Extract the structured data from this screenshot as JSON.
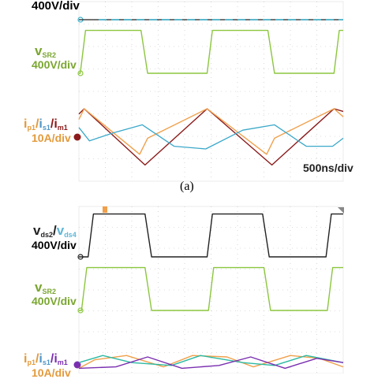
{
  "colors": {
    "vds": "#222222",
    "vds_cyan": "#39b3cf",
    "vsr": "#8cc63f",
    "ip": "#f0a04b",
    "is": "#3aa8c9",
    "im": "#8b1a1a",
    "ip_b": "#f0a04b",
    "is_b": "#2bb9a2",
    "im_b": "#7a2fb0",
    "grid": "#bdbdbd",
    "label_green": "#7aa630",
    "label_orange": "#e39a3b",
    "label_dark": "#222222",
    "label_blue": "#4f96c8"
  },
  "panel_a": {
    "top_scale": "400V/div",
    "vsr_label": {
      "main": "v",
      "sub": "SR2"
    },
    "vsr_scale": "400V/div",
    "current_label": {
      "p1": "i",
      "p1_sub": "p1",
      "sep1": "/",
      "s1": "i",
      "s1_sub": "s1",
      "sep2": "/",
      "m1": "i",
      "m1_sub": "m1"
    },
    "current_scale": "10A/div",
    "timebase": "500ns/div",
    "caption": "(a)"
  },
  "panel_b": {
    "vds_label": {
      "main": "v",
      "sub": "ds2",
      "sep": "/",
      "main2": "v",
      "sub2": "ds4"
    },
    "vds_scale": "400V/div",
    "vsr_label": {
      "main": "v",
      "sub": "SR2"
    },
    "vsr_scale": "400V/div",
    "current_label": {
      "p1": "i",
      "p1_sub": "p1",
      "sep1": "/",
      "s1": "i",
      "s1_sub": "s1",
      "sep2": "/",
      "m1": "i",
      "m1_sub": "m1"
    },
    "current_scale": "10A/div"
  },
  "chart_data": [
    {
      "type": "line",
      "panel": "a",
      "x_unit": "div",
      "time_per_div": "500ns",
      "xlim": [
        0,
        10
      ],
      "series": [
        {
          "key": "vds_top",
          "color_key": "vds",
          "x": [
            0,
            3.4,
            3.5,
            7.3,
            7.4,
            10
          ],
          "values": [
            0,
            0,
            0,
            0,
            0,
            0
          ]
        },
        {
          "key": "vsr2",
          "color_key": "vsr",
          "x": [
            0,
            0.05,
            0.25,
            2.35,
            2.6,
            4.85,
            5.05,
            7.15,
            7.4,
            9.65,
            9.85,
            10
          ],
          "values": [
            0,
            0,
            1.6,
            1.6,
            0,
            0,
            1.6,
            1.6,
            0,
            0,
            1.6,
            1.6
          ]
        },
        {
          "key": "im1",
          "color_key": "im",
          "x": [
            0,
            0.2,
            2.5,
            4.85,
            7.3,
            9.65,
            10
          ],
          "values": [
            0.8,
            1.0,
            -1.1,
            1.0,
            -1.1,
            1.0,
            0.9
          ]
        },
        {
          "key": "ip1",
          "color_key": "ip",
          "x": [
            0,
            0.2,
            2.3,
            2.6,
            4.85,
            7.1,
            7.4,
            9.65,
            10
          ],
          "values": [
            0.6,
            1.0,
            -0.7,
            -0.1,
            1.0,
            -0.7,
            -0.1,
            1.0,
            0.7
          ]
        },
        {
          "key": "is1",
          "color_key": "is",
          "x": [
            0,
            0.4,
            1.3,
            2.4,
            3.6,
            4.8,
            6.2,
            7.4,
            8.6,
            9.6,
            10
          ],
          "values": [
            0.3,
            -0.2,
            0.1,
            0.4,
            -0.4,
            -0.5,
            0.2,
            0.4,
            -0.4,
            -0.4,
            -0.1
          ]
        }
      ]
    },
    {
      "type": "line",
      "panel": "b",
      "x_unit": "div",
      "time_per_div": "500ns",
      "xlim": [
        0,
        10
      ],
      "series": [
        {
          "key": "vds2",
          "color_key": "vds",
          "x": [
            0,
            0.35,
            0.55,
            2.5,
            2.75,
            4.85,
            5.05,
            6.95,
            7.2,
            9.35,
            9.55,
            10
          ],
          "values": [
            0,
            0,
            1.6,
            1.6,
            0,
            0,
            1.6,
            1.6,
            0,
            0,
            1.6,
            1.6
          ]
        },
        {
          "key": "vsr2",
          "color_key": "vsr",
          "x": [
            0,
            0.1,
            0.3,
            2.5,
            2.75,
            4.9,
            5.1,
            7.0,
            7.25,
            9.4,
            9.6,
            10
          ],
          "values": [
            0,
            0,
            1.6,
            1.6,
            0,
            0,
            1.6,
            1.6,
            0,
            0,
            1.6,
            1.6
          ]
        },
        {
          "key": "ip1_b",
          "color_key": "ip_b",
          "x": [
            0,
            0.6,
            1.8,
            3.2,
            4.3,
            5.6,
            6.6,
            8.0,
            9.1,
            10
          ],
          "values": [
            -0.3,
            0.3,
            0.6,
            -0.2,
            0.6,
            0.5,
            -0.2,
            0.6,
            0.4,
            -0.2
          ]
        },
        {
          "key": "is1_b",
          "color_key": "is_b",
          "x": [
            0,
            0.9,
            2.0,
            3.5,
            4.6,
            6.2,
            7.4,
            8.6,
            10
          ],
          "values": [
            0.1,
            0.6,
            0.1,
            -0.1,
            0.6,
            0.1,
            -0.1,
            0.6,
            0.1
          ]
        },
        {
          "key": "im1_b",
          "color_key": "im_b",
          "x": [
            0,
            1.4,
            2.6,
            3.9,
            5.3,
            6.5,
            7.8,
            9.0,
            10
          ],
          "values": [
            -0.3,
            -0.2,
            0.5,
            -0.3,
            -0.1,
            0.5,
            -0.3,
            0.4,
            0.1
          ]
        }
      ]
    }
  ]
}
